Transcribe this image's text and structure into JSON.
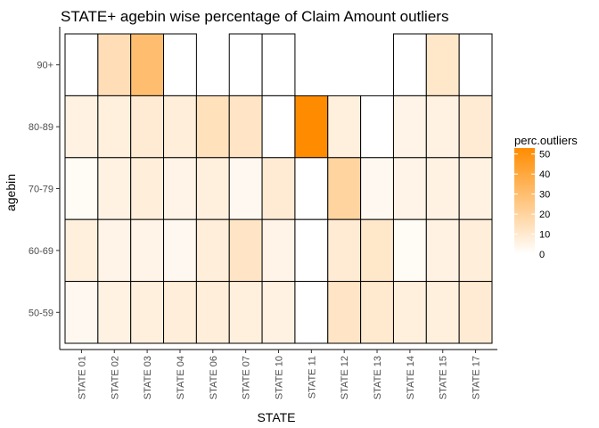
{
  "chart_data": {
    "type": "heatmap",
    "title": "STATE+ agebin wise percentage of Claim Amount outliers",
    "xlabel": "STATE",
    "ylabel": "agebin",
    "x_categories": [
      "STATE 01",
      "STATE 02",
      "STATE 03",
      "STATE 04",
      "STATE 06",
      "STATE 07",
      "STATE 10",
      "STATE 11",
      "STATE 12",
      "STATE 13",
      "STATE 14",
      "STATE 15",
      "STATE 17"
    ],
    "y_categories": [
      "90+",
      "80-89",
      "70-79",
      "60-69",
      "50-59"
    ],
    "values": [
      [
        0,
        15,
        30,
        0,
        null,
        0,
        0,
        null,
        null,
        null,
        0,
        11,
        0
      ],
      [
        6,
        7,
        9,
        8,
        14,
        12,
        0,
        53,
        7,
        0,
        5,
        6,
        9
      ],
      [
        2,
        6,
        8,
        5,
        7,
        3,
        9,
        0,
        20,
        3,
        5,
        6,
        6
      ],
      [
        7,
        5,
        5,
        3,
        8,
        12,
        5,
        0,
        9,
        11,
        2,
        6,
        8
      ],
      [
        3,
        6,
        7,
        8,
        8,
        7,
        6,
        0,
        12,
        10,
        7,
        7,
        9
      ]
    ],
    "color_scale": {
      "low": "#ffffff",
      "high": "#ff8c00",
      "min": 0,
      "max": 53
    },
    "legend": {
      "title": "perc.outliers",
      "ticks": [
        0,
        10,
        20,
        30,
        40,
        50
      ],
      "position": "right"
    },
    "grid": false
  }
}
